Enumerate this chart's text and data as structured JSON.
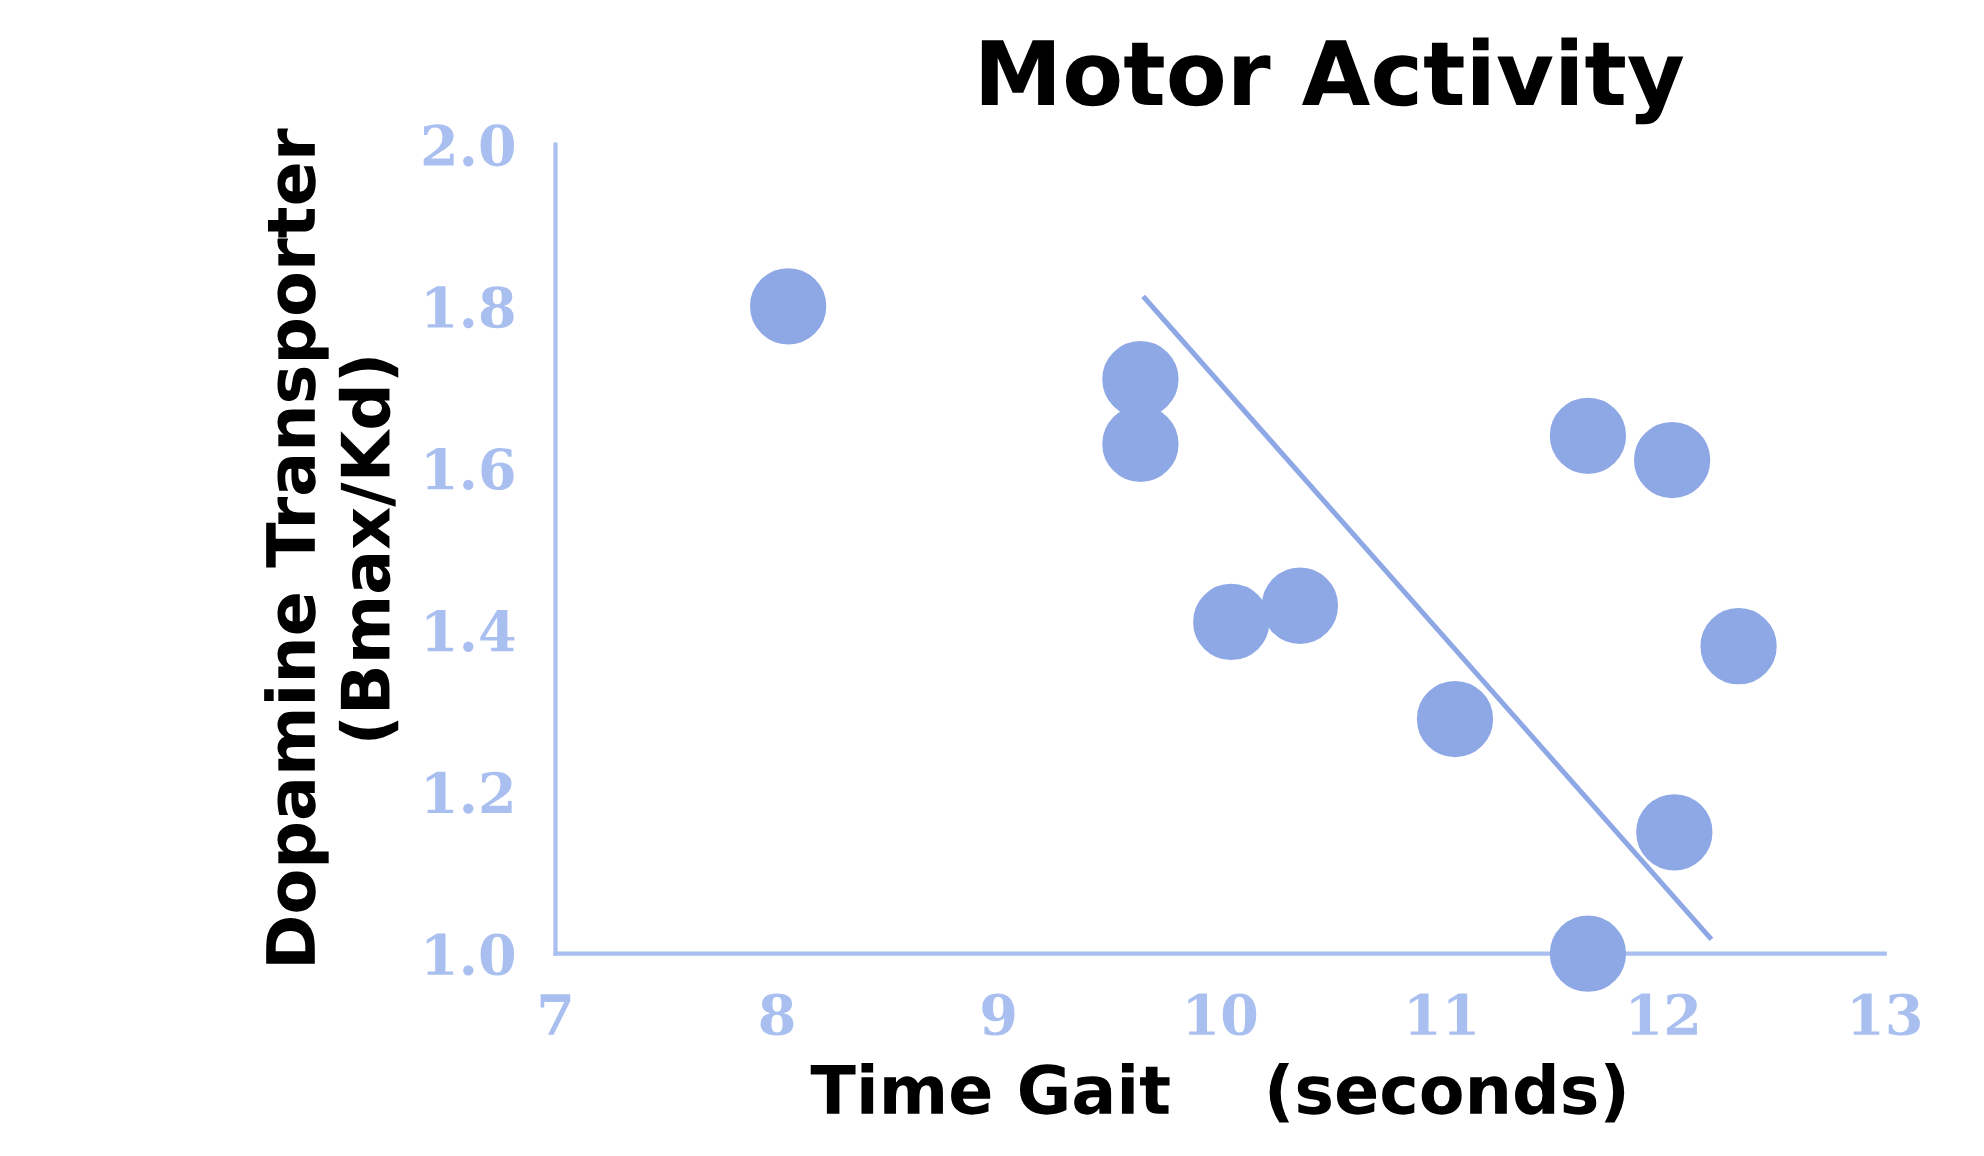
{
  "chart_data": {
    "type": "scatter",
    "title": "Motor Activity",
    "xlabel": "Time Gait    (seconds)",
    "ylabel": "Dopamine Transporter\n(Bmax/Kd)",
    "series": [
      {
        "marker": "circle",
        "color": "#8ea8e6",
        "x": [
          8.05,
          9.64,
          9.64,
          10.05,
          10.36,
          11.06,
          11.66,
          12.04,
          12.34,
          12.05,
          11.66
        ],
        "values": [
          1.8,
          1.71,
          1.63,
          1.41,
          1.43,
          1.29,
          1.64,
          1.61,
          1.38,
          1.15,
          1.0
        ]
      },
      {
        "type": "line",
        "color": "#8ea8e6",
        "x": [
          9.66,
          12.21
        ],
        "values": [
          1.81,
          1.02
        ]
      }
    ],
    "grid": false,
    "legend": false,
    "xlim": [
      7,
      13
    ],
    "xticks": [
      7,
      8,
      9,
      10,
      11,
      12,
      13
    ],
    "ylim": [
      1.0,
      2.0
    ],
    "yticks": [
      {
        "value": 1.0,
        "label": "1.0"
      },
      {
        "value": 1.2,
        "label": "1.2"
      },
      {
        "value": 1.4,
        "label": "1.4"
      },
      {
        "value": 1.6,
        "label": "1.6"
      },
      {
        "value": 1.8,
        "label": "1.8"
      },
      {
        "value": 2.0,
        "label": "2.0"
      }
    ]
  }
}
